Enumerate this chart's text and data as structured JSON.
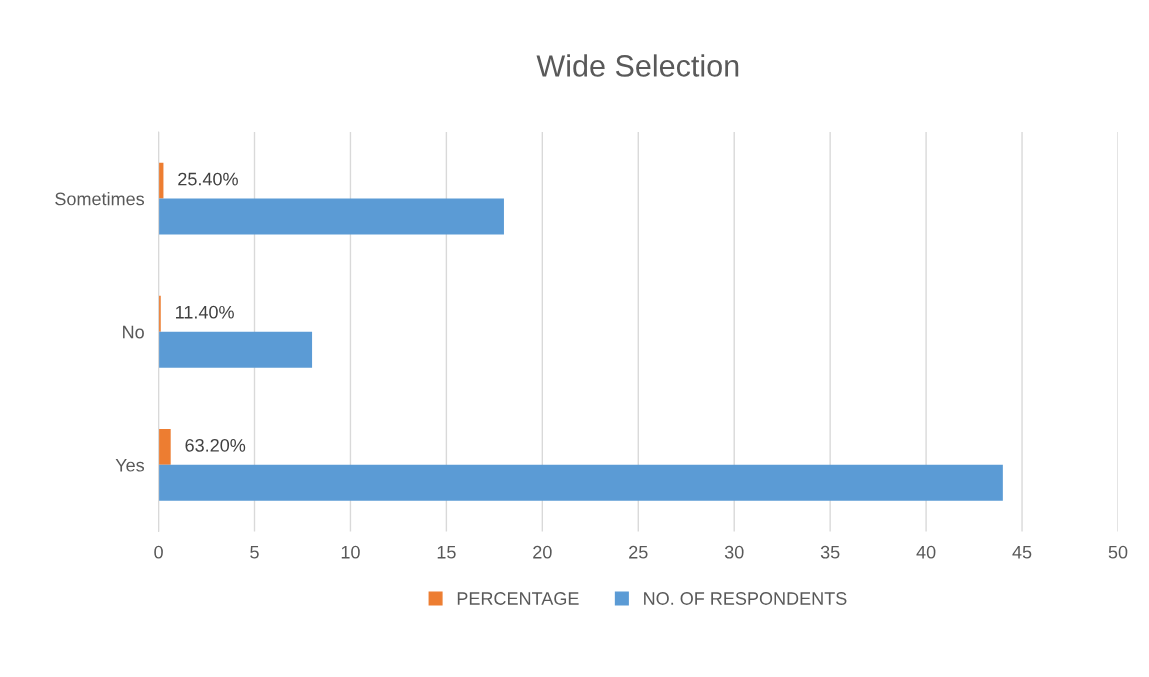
{
  "chart_data": {
    "type": "bar",
    "orientation": "horizontal",
    "title": "Wide Selection",
    "categories": [
      "Sometimes",
      "No",
      "Yes"
    ],
    "series": [
      {
        "name": "PERCENTAGE",
        "color": "#ed7d31",
        "values": [
          0.254,
          0.114,
          0.632
        ],
        "value_labels": [
          "25.40%",
          "11.40%",
          "63.20%"
        ]
      },
      {
        "name": "NO. OF RESPONDENTS",
        "color": "#5b9bd5",
        "values": [
          18,
          8,
          44
        ]
      }
    ],
    "xlim": [
      0,
      50
    ],
    "xticks": [
      0,
      5,
      10,
      15,
      20,
      25,
      30,
      35,
      40,
      45,
      50
    ],
    "grid": "x",
    "legend": "bottom"
  }
}
